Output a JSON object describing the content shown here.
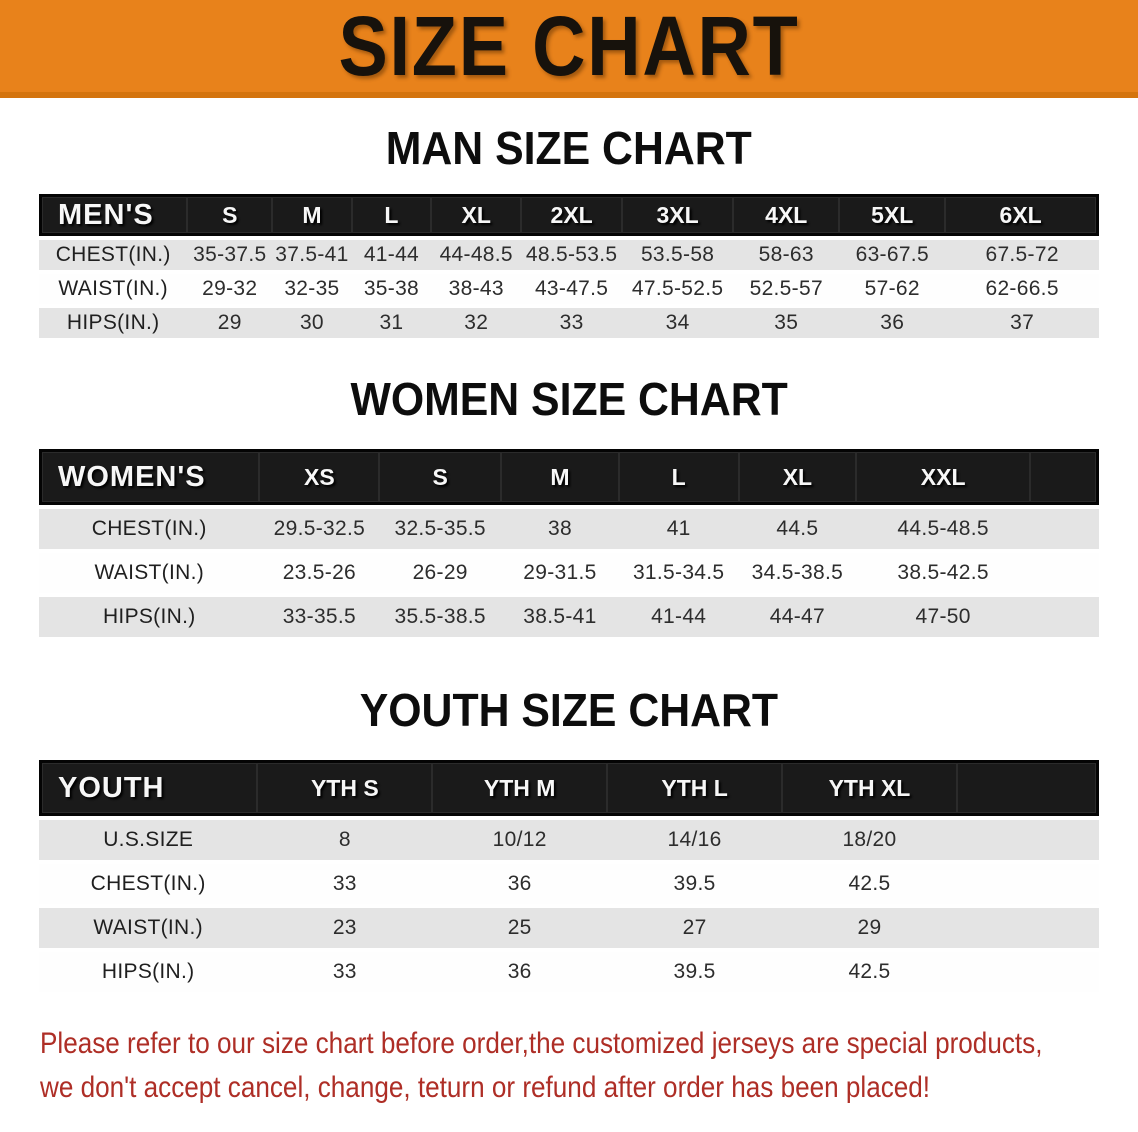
{
  "banner": {
    "title": "SIZE CHART",
    "bg_color": "#E8821B",
    "edge_color": "#D4740E"
  },
  "sections": [
    {
      "id": "men",
      "heading": "MAN SIZE CHART",
      "table": {
        "label_header": "MEN'S",
        "size_headers": [
          "S",
          "M",
          "L",
          "XL",
          "2XL",
          "3XL",
          "4XL",
          "5XL",
          "6XL"
        ],
        "rows": [
          {
            "label": "CHEST(IN.)",
            "shaded": true,
            "values": [
              "35-37.5",
              "37.5-41",
              "41-44",
              "44-48.5",
              "48.5-53.5",
              "53.5-58",
              "58-63",
              "63-67.5",
              "67.5-72"
            ]
          },
          {
            "label": "WAIST(IN.)",
            "shaded": false,
            "values": [
              "29-32",
              "32-35",
              "35-38",
              "38-43",
              "43-47.5",
              "47.5-52.5",
              "52.5-57",
              "57-62",
              "62-66.5"
            ]
          },
          {
            "label": "HIPS(IN.)",
            "shaded": true,
            "values": [
              "29",
              "30",
              "31",
              "32",
              "33",
              "34",
              "35",
              "36",
              "37"
            ]
          }
        ]
      }
    },
    {
      "id": "women",
      "heading": "WOMEN SIZE CHART",
      "table": {
        "label_header": "WOMEN'S",
        "size_headers": [
          "XS",
          "S",
          "M",
          "L",
          "XL",
          "XXL"
        ],
        "rows": [
          {
            "label": "CHEST(IN.)",
            "shaded": true,
            "values": [
              "29.5-32.5",
              "32.5-35.5",
              "38",
              "41",
              "44.5",
              "44.5-48.5"
            ]
          },
          {
            "label": "WAIST(IN.)",
            "shaded": false,
            "values": [
              "23.5-26",
              "26-29",
              "29-31.5",
              "31.5-34.5",
              "34.5-38.5",
              "38.5-42.5"
            ]
          },
          {
            "label": "HIPS(IN.)",
            "shaded": true,
            "values": [
              "33-35.5",
              "35.5-38.5",
              "38.5-41",
              "41-44",
              "44-47",
              "47-50"
            ]
          }
        ]
      }
    },
    {
      "id": "youth",
      "heading": "YOUTH SIZE CHART",
      "table": {
        "label_header": "YOUTH",
        "size_headers": [
          "YTH S",
          "YTH M",
          "YTH L",
          "YTH XL"
        ],
        "rows": [
          {
            "label": "U.S.SIZE",
            "shaded": true,
            "values": [
              "8",
              "10/12",
              "14/16",
              "18/20"
            ]
          },
          {
            "label": "CHEST(IN.)",
            "shaded": false,
            "values": [
              "33",
              "36",
              "39.5",
              "42.5"
            ]
          },
          {
            "label": "WAIST(IN.)",
            "shaded": true,
            "values": [
              "23",
              "25",
              "27",
              "29"
            ]
          },
          {
            "label": "HIPS(IN.)",
            "shaded": false,
            "values": [
              "33",
              "36",
              "39.5",
              "42.5"
            ]
          }
        ]
      }
    }
  ],
  "disclaimer": {
    "color": "#AE2E26",
    "lines": [
      "Please refer to our size chart before order,the customized jerseys are special products,",
      "we don't accept cancel, change, teturn or refund after order has been placed!"
    ]
  }
}
